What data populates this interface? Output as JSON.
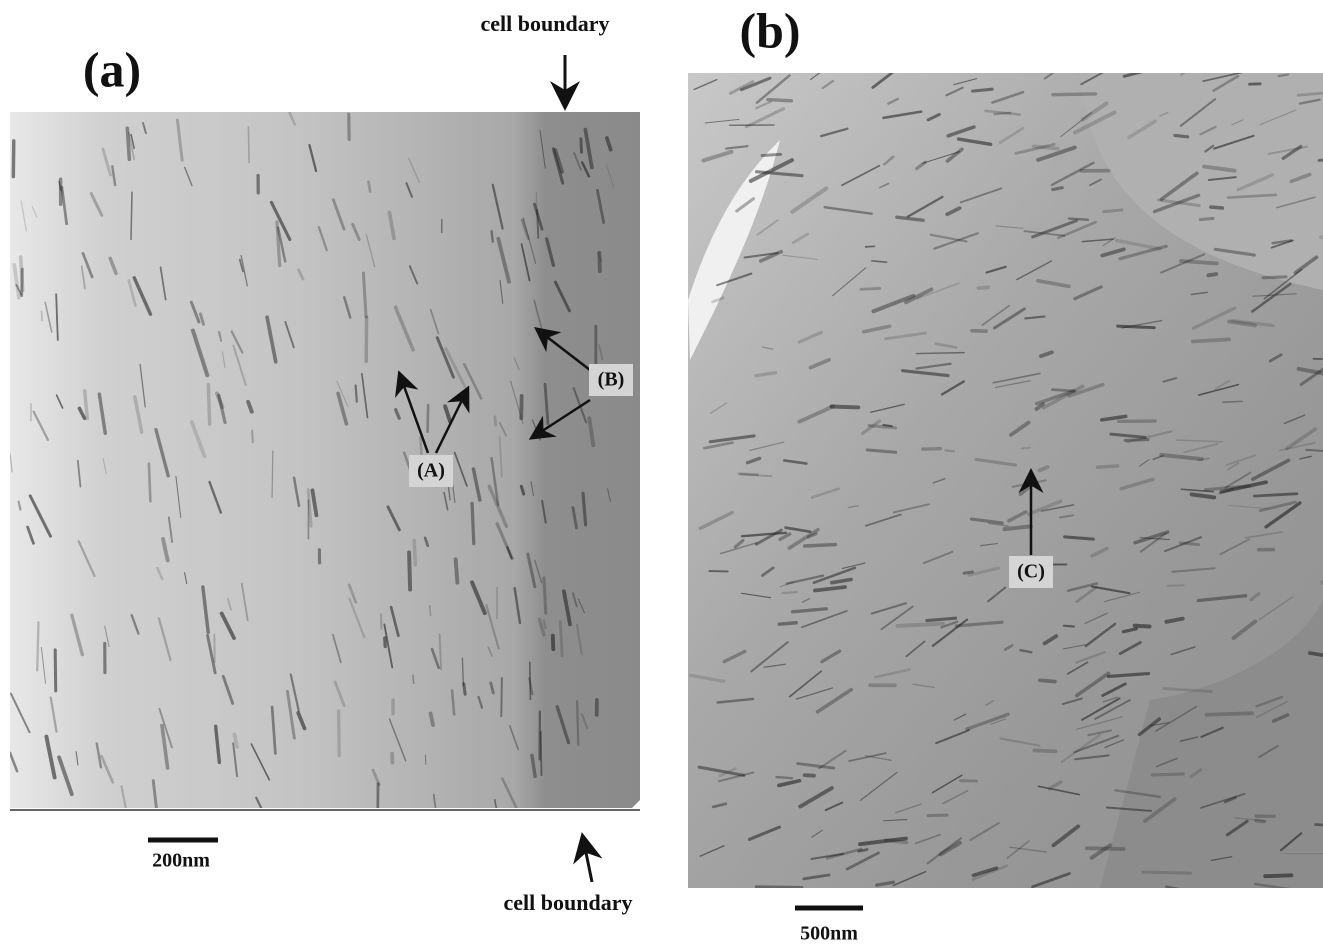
{
  "panels": [
    {
      "label": "(a)",
      "top_note": "cell boundary",
      "bottom_note": "cell boundary",
      "scale_bar": "200nm",
      "annotations": [
        "(A)",
        "(B)"
      ]
    },
    {
      "label": "(b)",
      "scale_bar": "500nm",
      "annotations": [
        "(C)"
      ]
    }
  ]
}
